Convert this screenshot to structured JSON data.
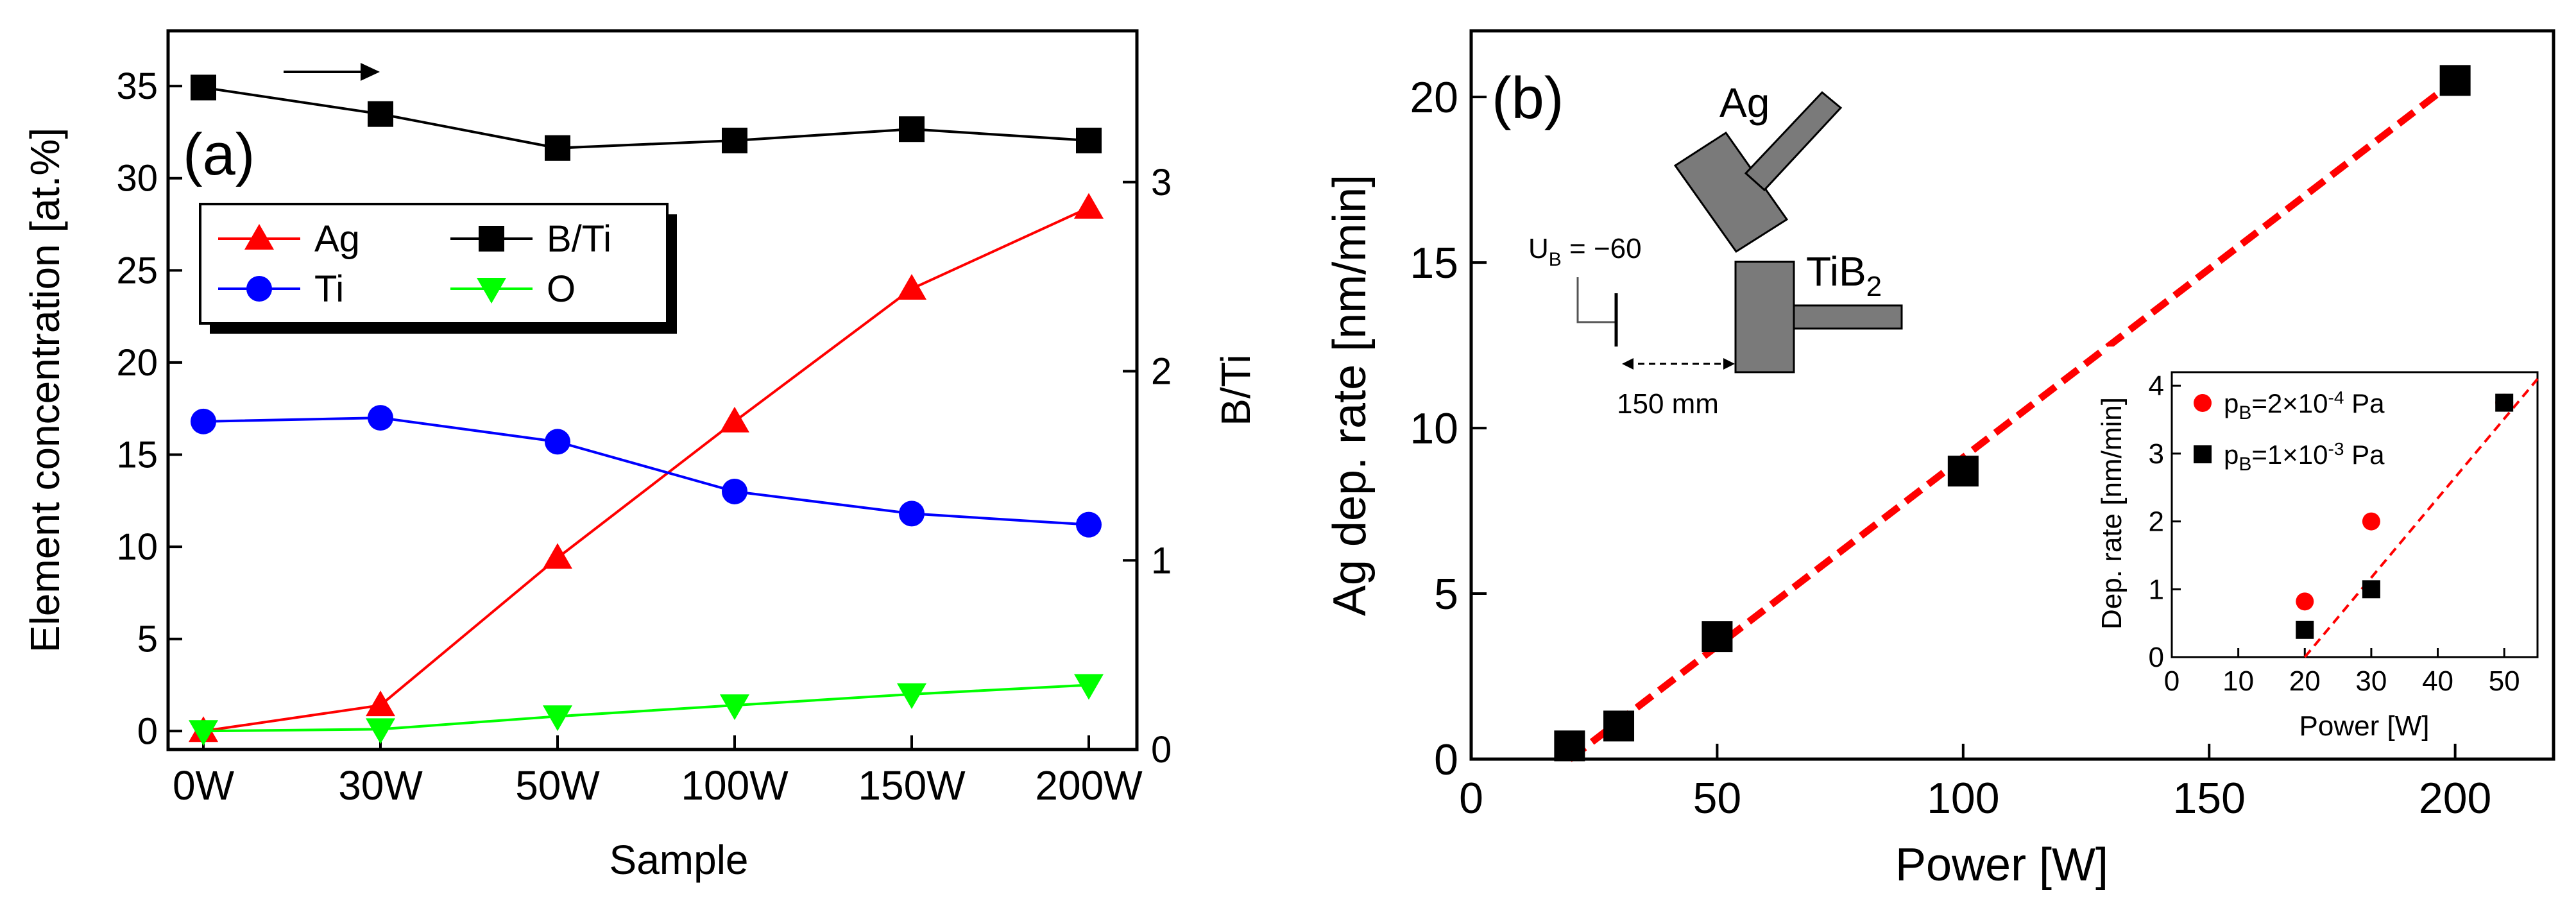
{
  "chart_data": [
    {
      "panel": "(a)",
      "type": "line",
      "categories": [
        "0W",
        "30W",
        "50W",
        "100W",
        "150W",
        "200W"
      ],
      "xlabel": "Sample",
      "ylabel": "Element concentration [at.%]",
      "y2label": "B/Ti",
      "ylim": [
        -1,
        38
      ],
      "y2lim": [
        0,
        3.8
      ],
      "yticks": [
        0,
        5,
        10,
        15,
        20,
        25,
        30,
        35
      ],
      "y2ticks": [
        0,
        1,
        2,
        3
      ],
      "legend_position": "upper-left",
      "series": [
        {
          "name": "Ag",
          "marker": "triangle-up",
          "color": "#ff0000",
          "axis": "left",
          "values": [
            0.0,
            1.4,
            9.4,
            16.8,
            24.0,
            28.4
          ]
        },
        {
          "name": "Ti",
          "marker": "circle",
          "color": "#0000ff",
          "axis": "left",
          "values": [
            16.8,
            17.0,
            15.7,
            13.0,
            11.8,
            11.2
          ]
        },
        {
          "name": "B/Ti",
          "marker": "square",
          "color": "#000000",
          "axis": "right",
          "values": [
            3.5,
            3.36,
            3.18,
            3.22,
            3.28,
            3.22
          ]
        },
        {
          "name": "O",
          "marker": "triangle-down",
          "color": "#00ff00",
          "axis": "left",
          "values": [
            0.0,
            0.1,
            0.8,
            1.4,
            2.0,
            2.5
          ]
        }
      ]
    },
    {
      "panel": "(b)",
      "type": "scatter",
      "xlabel": "Power [W]",
      "ylabel": "Ag dep. rate [nm/min]",
      "xlim": [
        0,
        220
      ],
      "ylim": [
        0,
        22
      ],
      "xticks": [
        0,
        50,
        100,
        150,
        200
      ],
      "yticks": [
        0,
        5,
        10,
        15,
        20
      ],
      "series": [
        {
          "name": "Ag dep. rate",
          "marker": "square",
          "color": "#000000",
          "x": [
            20,
            30,
            50,
            100,
            200
          ],
          "y": [
            0.4,
            1.0,
            3.7,
            8.7,
            20.5
          ]
        }
      ],
      "fit": {
        "color": "#ff0000",
        "style": "dashed",
        "x": [
          20,
          200
        ],
        "y": [
          0.0,
          20.5
        ]
      },
      "schematic": {
        "label_top": "Ag",
        "label_bottom_base": "TiB",
        "label_bottom_sub": "2",
        "bias_base": "U",
        "bias_sub": "B",
        "bias_value": " = −60",
        "distance": "150 mm"
      },
      "inset": {
        "type": "scatter",
        "xlabel": "Power [W]",
        "ylabel": "Dep. rate [nm/min]",
        "xlim": [
          0,
          55
        ],
        "ylim": [
          0,
          4.2
        ],
        "xticks": [
          0,
          10,
          20,
          30,
          40,
          50
        ],
        "yticks": [
          0,
          1,
          2,
          3,
          4
        ],
        "series": [
          {
            "name": "pB=2×10^-4 Pa",
            "label_p": "p",
            "label_sub": "B",
            "label_mid": "=2×10",
            "label_sup": "-4",
            "label_end": " Pa",
            "marker": "circle",
            "color": "#ff0000",
            "x": [
              20,
              30,
              50
            ],
            "y": [
              0.82,
              2.0,
              3.75
            ]
          },
          {
            "name": "pB=1×10^-3 Pa",
            "label_p": "p",
            "label_sub": "B",
            "label_mid": "=1×10",
            "label_sup": "-3",
            "label_end": " Pa",
            "marker": "square",
            "color": "#000000",
            "x": [
              20,
              30,
              50
            ],
            "y": [
              0.4,
              1.0,
              3.75
            ]
          }
        ],
        "fit": {
          "color": "#ff0000",
          "style": "dashed",
          "x": [
            20,
            55
          ],
          "y": [
            0.0,
            4.1
          ]
        }
      }
    }
  ]
}
